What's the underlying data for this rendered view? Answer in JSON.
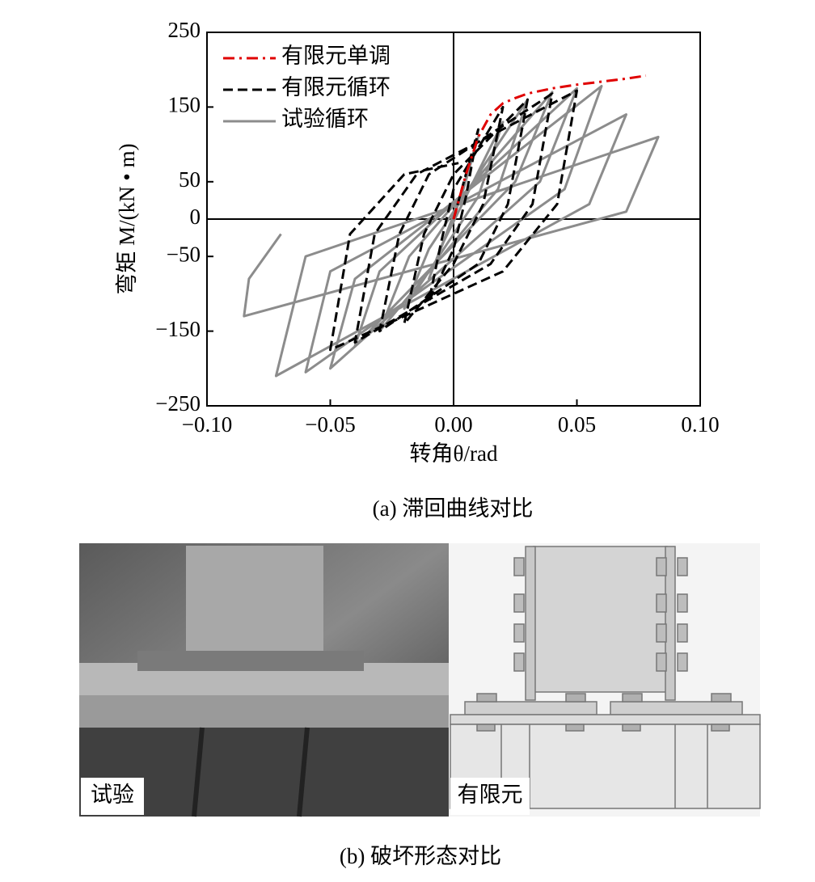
{
  "chart_data": {
    "type": "line",
    "xlabel": "转角θ/rad",
    "ylabel": "弯矩 M/(kN • m)",
    "xlim": [
      -0.1,
      0.1
    ],
    "ylim": [
      -250,
      250
    ],
    "xticks": [
      {
        "value": -0.1,
        "label": "−0.10"
      },
      {
        "value": -0.05,
        "label": "−0.05"
      },
      {
        "value": 0,
        "label": "0.00"
      },
      {
        "value": 0.05,
        "label": "0.05"
      },
      {
        "value": 0.1,
        "label": "0.10"
      }
    ],
    "yticks": [
      250,
      150,
      50,
      0,
      {
        "value": -50,
        "label": "−50"
      },
      {
        "value": -150,
        "label": "−150"
      },
      {
        "value": -250,
        "label": "−250"
      }
    ],
    "legend": "upper left",
    "series": [
      {
        "name": "有限元单调",
        "color": "#e00000",
        "dash": "dashdot",
        "x": [
          0,
          0.005,
          0.01,
          0.015,
          0.02,
          0.025,
          0.03,
          0.04,
          0.05,
          0.06,
          0.07,
          0.078
        ],
        "values": [
          0,
          60,
          110,
          140,
          155,
          162,
          168,
          175,
          180,
          184,
          188,
          192
        ]
      },
      {
        "name": "有限元循环",
        "color": "#000000",
        "dash": "dashed",
        "x": [
          0,
          0.01,
          0.005,
          0,
          -0.01,
          -0.005,
          0,
          0.02,
          0.012,
          0,
          -0.02,
          -0.012,
          0,
          0.03,
          0.022,
          0.01,
          -0.03,
          -0.022,
          -0.01,
          0.04,
          0.032,
          0.015,
          -0.04,
          -0.032,
          -0.015,
          0.05,
          0.042,
          0.02,
          -0.05,
          -0.042,
          -0.02,
          0.002
        ],
        "values": [
          0,
          120,
          30,
          -40,
          -110,
          -30,
          40,
          150,
          20,
          -60,
          -140,
          -20,
          60,
          160,
          20,
          -60,
          -150,
          -20,
          60,
          168,
          20,
          -60,
          -165,
          -20,
          60,
          172,
          20,
          -70,
          -175,
          -20,
          60,
          75
        ]
      },
      {
        "name": "试验循环",
        "color": "#8c8c8c",
        "dash": "solid",
        "x": [
          0,
          0.01,
          0.004,
          -0.01,
          -0.004,
          0.02,
          0.01,
          -0.02,
          -0.01,
          0.03,
          0.018,
          -0.03,
          -0.018,
          0.04,
          0.025,
          -0.04,
          -0.03,
          0.05,
          0.035,
          -0.05,
          -0.04,
          0.06,
          0.045,
          -0.06,
          -0.05,
          0.07,
          0.055,
          -0.072,
          -0.06,
          0.083,
          0.07,
          -0.085,
          -0.083,
          -0.07
        ],
        "values": [
          0,
          110,
          40,
          -80,
          -30,
          130,
          30,
          -120,
          -40,
          160,
          40,
          -150,
          -50,
          170,
          50,
          -170,
          -70,
          175,
          50,
          -200,
          -80,
          178,
          40,
          -205,
          -70,
          140,
          20,
          -210,
          -50,
          110,
          10,
          -130,
          -80,
          -20
        ]
      }
    ]
  },
  "caption_a": "(a)  滞回曲线对比",
  "photos": {
    "labels": [
      "试验",
      "有限元"
    ]
  },
  "caption_b": "(b)  破坏形态对比"
}
